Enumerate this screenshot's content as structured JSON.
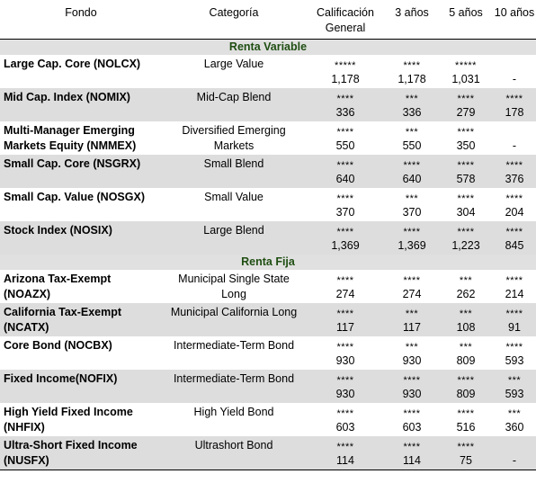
{
  "headers": {
    "fund": "Fondo",
    "category": "Categoría",
    "overall": "Calificación General",
    "y3": "3 años",
    "y5": "5 años",
    "y10": "10 años"
  },
  "sections": [
    {
      "title": "Renta Variable",
      "rows": [
        {
          "fund": "Large Cap. Core (NOLCX)",
          "category": "Large Value",
          "overall_stars": "*****",
          "overall": "1,178",
          "y3_stars": "****",
          "y3": "1,178",
          "y5_stars": "*****",
          "y5": "1,031",
          "y10_stars": "",
          "y10": "-"
        },
        {
          "fund": "Mid Cap. Index (NOMIX)",
          "category": "Mid-Cap Blend",
          "overall_stars": "****",
          "overall": "336",
          "y3_stars": "***",
          "y3": "336",
          "y5_stars": "****",
          "y5": "279",
          "y10_stars": "****",
          "y10": "178"
        },
        {
          "fund": "Multi-Manager Emerging Markets Equity (NMMEX)",
          "category": "Diversified Emerging Markets",
          "overall_stars": "****",
          "overall": "550",
          "y3_stars": "***",
          "y3": "550",
          "y5_stars": "****",
          "y5": "350",
          "y10_stars": "",
          "y10": "-"
        },
        {
          "fund": "Small Cap. Core (NSGRX)",
          "category": "Small Blend",
          "overall_stars": "****",
          "overall": "640",
          "y3_stars": "****",
          "y3": "640",
          "y5_stars": "****",
          "y5": "578",
          "y10_stars": "****",
          "y10": "376"
        },
        {
          "fund": "Small Cap. Value (NOSGX)",
          "category": "Small Value",
          "overall_stars": "****",
          "overall": "370",
          "y3_stars": "***",
          "y3": "370",
          "y5_stars": "****",
          "y5": "304",
          "y10_stars": "****",
          "y10": "204"
        },
        {
          "fund": "Stock Index (NOSIX)",
          "category": "Large Blend",
          "overall_stars": "****",
          "overall": "1,369",
          "y3_stars": "****",
          "y3": "1,369",
          "y5_stars": "****",
          "y5": "1,223",
          "y10_stars": "****",
          "y10": "845"
        }
      ]
    },
    {
      "title": "Renta Fija",
      "rows": [
        {
          "fund": "Arizona Tax-Exempt (NOAZX)",
          "category": "Municipal Single State Long",
          "overall_stars": "****",
          "overall": "274",
          "y3_stars": "****",
          "y3": "274",
          "y5_stars": "***",
          "y5": "262",
          "y10_stars": "****",
          "y10": "214"
        },
        {
          "fund": "California Tax-Exempt (NCATX)",
          "category": "Municipal California Long",
          "overall_stars": "****",
          "overall": "117",
          "y3_stars": "***",
          "y3": "117",
          "y5_stars": "***",
          "y5": "108",
          "y10_stars": "****",
          "y10": "91"
        },
        {
          "fund": "Core Bond (NOCBX)",
          "category": "Intermediate-Term Bond",
          "overall_stars": "****",
          "overall": "930",
          "y3_stars": "***",
          "y3": "930",
          "y5_stars": "***",
          "y5": "809",
          "y10_stars": "****",
          "y10": "593"
        },
        {
          "fund": "Fixed Income(NOFIX)",
          "category": "Intermediate-Term Bond",
          "overall_stars": "****",
          "overall": "930",
          "y3_stars": "****",
          "y3": "930",
          "y5_stars": "****",
          "y5": "809",
          "y10_stars": "***",
          "y10": "593"
        },
        {
          "fund": "High Yield Fixed Income (NHFIX)",
          "category": "High Yield Bond",
          "overall_stars": "****",
          "overall": "603",
          "y3_stars": "****",
          "y3": "603",
          "y5_stars": "****",
          "y5": "516",
          "y10_stars": "***",
          "y10": "360"
        },
        {
          "fund": "Ultra-Short Fixed Income (NUSFX)",
          "category": "Ultrashort Bond",
          "overall_stars": "****",
          "overall": "114",
          "y3_stars": "****",
          "y3": "114",
          "y5_stars": "****",
          "y5": "75",
          "y10_stars": "",
          "y10": "-"
        }
      ]
    }
  ]
}
